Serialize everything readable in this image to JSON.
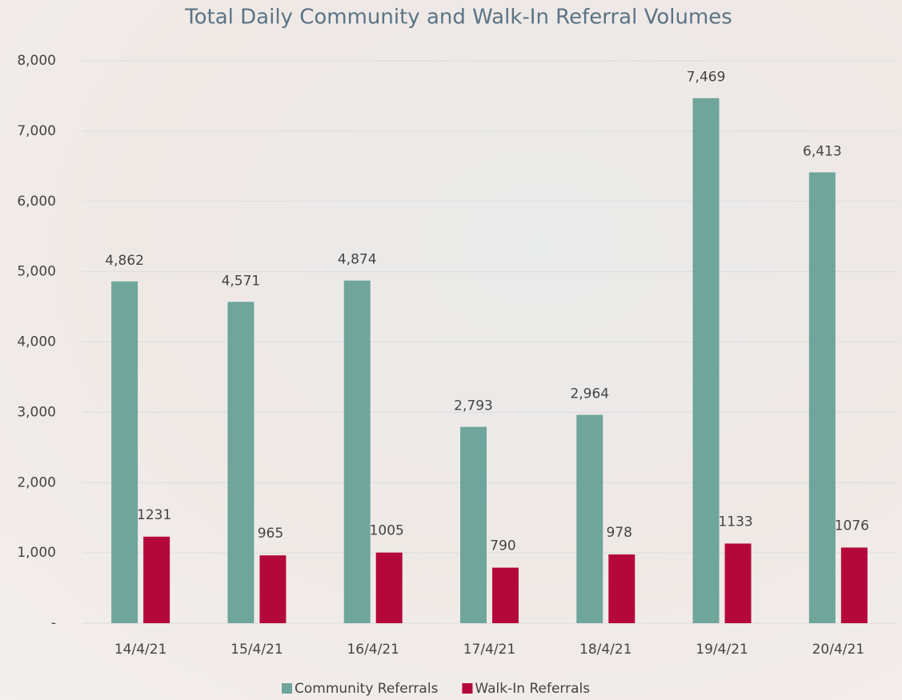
{
  "chart_data": {
    "type": "grouped-bar",
    "title": "Total Daily Community and Walk-In Referral Volumes",
    "categories": [
      "14/4/21",
      "15/4/21",
      "16/4/21",
      "17/4/21",
      "18/4/21",
      "19/4/21",
      "20/4/21"
    ],
    "series": [
      {
        "name": "Community Referrals",
        "color": "#6fa59b",
        "values": [
          4862,
          4571,
          4874,
          2793,
          2964,
          7469,
          6413
        ],
        "value_labels": [
          "4,862",
          "4,571",
          "4,874",
          "2,793",
          "2,964",
          "7,469",
          "6,413"
        ]
      },
      {
        "name": "Walk-In Referrals",
        "color": "#b5083a",
        "values": [
          1231,
          965,
          1005,
          790,
          978,
          1133,
          1076
        ]
      }
    ],
    "ylim": [
      0,
      8000
    ],
    "yticks": [
      {
        "value": 0,
        "label": "-"
      },
      {
        "value": 1000,
        "label": "1,000"
      },
      {
        "value": 2000,
        "label": "2,000"
      },
      {
        "value": 3000,
        "label": "3,000"
      },
      {
        "value": 4000,
        "label": "4,000"
      },
      {
        "value": 5000,
        "label": "5,000"
      },
      {
        "value": 6000,
        "label": "6,000"
      },
      {
        "value": 7000,
        "label": "7,000"
      },
      {
        "value": 8000,
        "label": "8,000"
      }
    ],
    "grid": true,
    "legend": "bottom"
  }
}
